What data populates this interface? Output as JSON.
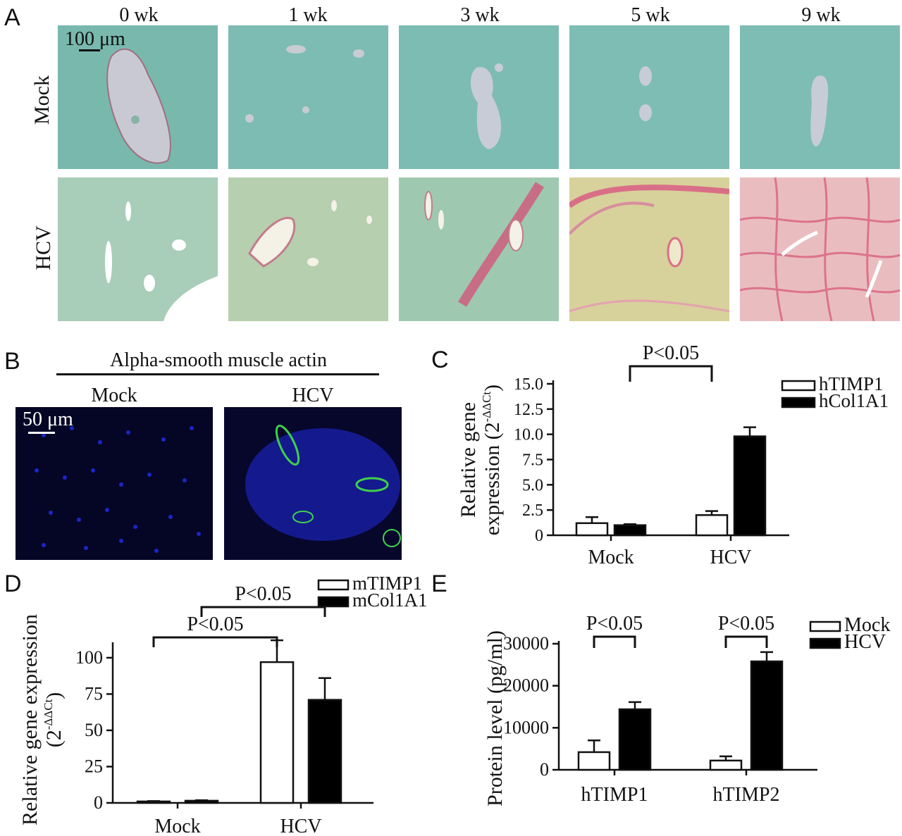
{
  "panelA": {
    "letter": "A",
    "columns": [
      "0 wk",
      "1 wk",
      "3 wk",
      "5 wk",
      "9 wk"
    ],
    "rows": [
      "Mock",
      "HCV"
    ],
    "scale_label": "100 μm"
  },
  "panelB": {
    "letter": "B",
    "title": "Alpha-smooth muscle actin",
    "groups": [
      "Mock",
      "HCV"
    ],
    "scale_label": "50 μm"
  },
  "chart_data": [
    {
      "panel": "C",
      "type": "bar",
      "ylabel_line1": "Relative gene",
      "ylabel_line2": "expression (2",
      "ylabel_sup": "-ΔΔCt",
      "ylabel_close": ")",
      "ylim": [
        0,
        15.0
      ],
      "yticks": [
        "0",
        "2.5",
        "5.0",
        "7.5",
        "10.0",
        "12.5",
        "15.0"
      ],
      "ytick_values": [
        0,
        2.5,
        5.0,
        7.5,
        10.0,
        12.5,
        15.0
      ],
      "categories": [
        "Mock",
        "HCV"
      ],
      "series": [
        {
          "name": "hTIMP1",
          "fill": "#ffffff",
          "values": [
            1.2,
            2.0
          ],
          "errors": [
            0.6,
            0.4
          ]
        },
        {
          "name": "hCol1A1",
          "fill": "#000000",
          "values": [
            1.0,
            9.8
          ],
          "errors": [
            0.1,
            0.9
          ]
        }
      ],
      "significance": [
        {
          "label": "P<0.05",
          "from": [
            0,
            1
          ],
          "to": [
            1,
            0
          ]
        }
      ]
    },
    {
      "panel": "D",
      "type": "bar",
      "ylabel": "Relative gene expression",
      "ylabel2": "(2",
      "ylabel2_sup": "-ΔΔCt",
      "ylabel2_close": ")",
      "ylim": [
        0,
        115
      ],
      "yticks": [
        "0",
        "25",
        "50",
        "75",
        "100"
      ],
      "ytick_values": [
        0,
        25,
        50,
        75,
        100
      ],
      "categories": [
        "Mock",
        "HCV"
      ],
      "series": [
        {
          "name": "mTIMP1",
          "fill": "#ffffff",
          "values": [
            1,
            97
          ],
          "errors": [
            0.3,
            15
          ]
        },
        {
          "name": "mCol1A1",
          "fill": "#000000",
          "values": [
            1.5,
            71
          ],
          "errors": [
            0.3,
            15
          ]
        }
      ],
      "significance": [
        {
          "label": "P<0.05",
          "from": [
            0,
            0
          ],
          "to": [
            1,
            0
          ]
        },
        {
          "label": "P<0.05",
          "from": [
            0,
            1
          ],
          "to": [
            1,
            1
          ]
        }
      ]
    },
    {
      "panel": "E",
      "type": "bar",
      "ylabel": "Protein level (pg/ml)",
      "ylim": [
        0,
        30000
      ],
      "yticks": [
        "0",
        "10000",
        "20000",
        "30000"
      ],
      "ytick_values": [
        0,
        10000,
        20000,
        30000
      ],
      "categories": [
        "hTIMP1",
        "hTIMP2"
      ],
      "series": [
        {
          "name": "Mock",
          "fill": "#ffffff",
          "values": [
            4200,
            2200
          ],
          "errors": [
            2800,
            1000
          ]
        },
        {
          "name": "HCV",
          "fill": "#000000",
          "values": [
            14400,
            25800
          ],
          "errors": [
            1700,
            2200
          ]
        }
      ],
      "significance": [
        {
          "label": "P<0.05",
          "from": [
            0,
            0
          ],
          "to": [
            0,
            1
          ]
        },
        {
          "label": "P<0.05",
          "from": [
            1,
            0
          ],
          "to": [
            1,
            1
          ]
        }
      ]
    }
  ]
}
